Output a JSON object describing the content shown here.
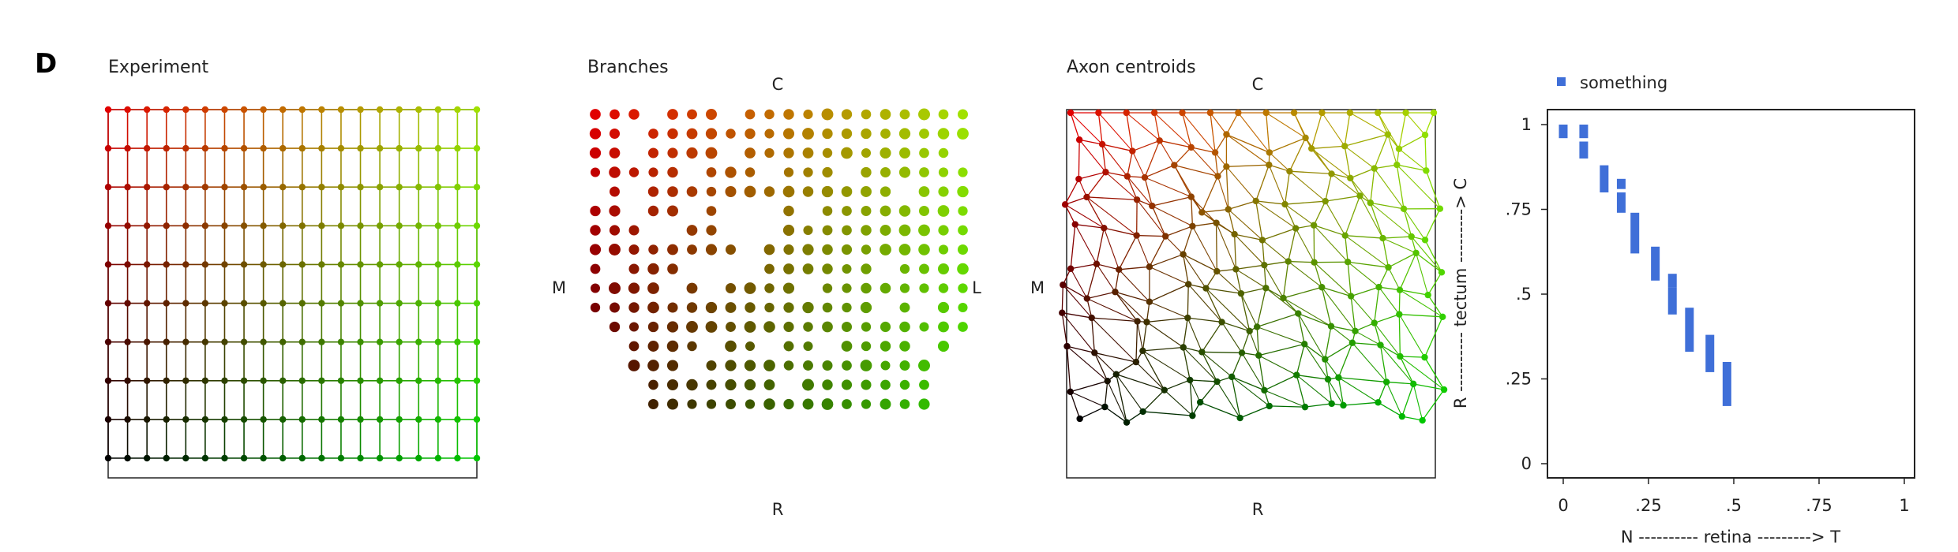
{
  "figure": {
    "panel_letter": "D",
    "titles": {
      "experiment": "Experiment",
      "branches": "Branches",
      "centroids": "Axon centroids"
    },
    "branches_labels": {
      "top": "C",
      "bottom": "R",
      "left": "M",
      "right": "L"
    },
    "centroids_labels": {
      "top": "C",
      "bottom": "R",
      "left": "M"
    }
  },
  "chart_data": {
    "type": "scatter",
    "title": "",
    "xlabel": "N ---------- retina ---------> T",
    "ylabel": "R ---------- tectum ---------> C",
    "xlim": [
      0,
      1
    ],
    "ylim": [
      0,
      1
    ],
    "xticks": [
      0,
      0.25,
      0.5,
      0.75,
      1
    ],
    "xtick_labels": [
      "0",
      ".25",
      ".5",
      ".75",
      "1"
    ],
    "yticks": [
      0,
      0.25,
      0.5,
      0.75,
      1
    ],
    "ytick_labels": [
      "0",
      ".25",
      ".5",
      ".75",
      "1"
    ],
    "grid": false,
    "legend": {
      "position": "top-left",
      "entries": [
        "something"
      ]
    },
    "series": [
      {
        "name": "something",
        "color": "#3f6fd8",
        "x": [
          0.0,
          0.06,
          0.06,
          0.12,
          0.17,
          0.17,
          0.21,
          0.27,
          0.32,
          0.32,
          0.37,
          0.43,
          0.48
        ],
        "y_low": [
          0.96,
          0.9,
          0.96,
          0.8,
          0.74,
          0.81,
          0.62,
          0.54,
          0.44,
          0.52,
          0.33,
          0.27,
          0.17
        ],
        "y_high": [
          1.0,
          0.95,
          1.0,
          0.88,
          0.8,
          0.84,
          0.74,
          0.64,
          0.52,
          0.56,
          0.46,
          0.38,
          0.3
        ]
      }
    ],
    "colors": {
      "low": "#000000",
      "red": "#e00000",
      "yellow": "#e0e000",
      "green": "#00d000",
      "blue": "#3f6fd8"
    }
  }
}
